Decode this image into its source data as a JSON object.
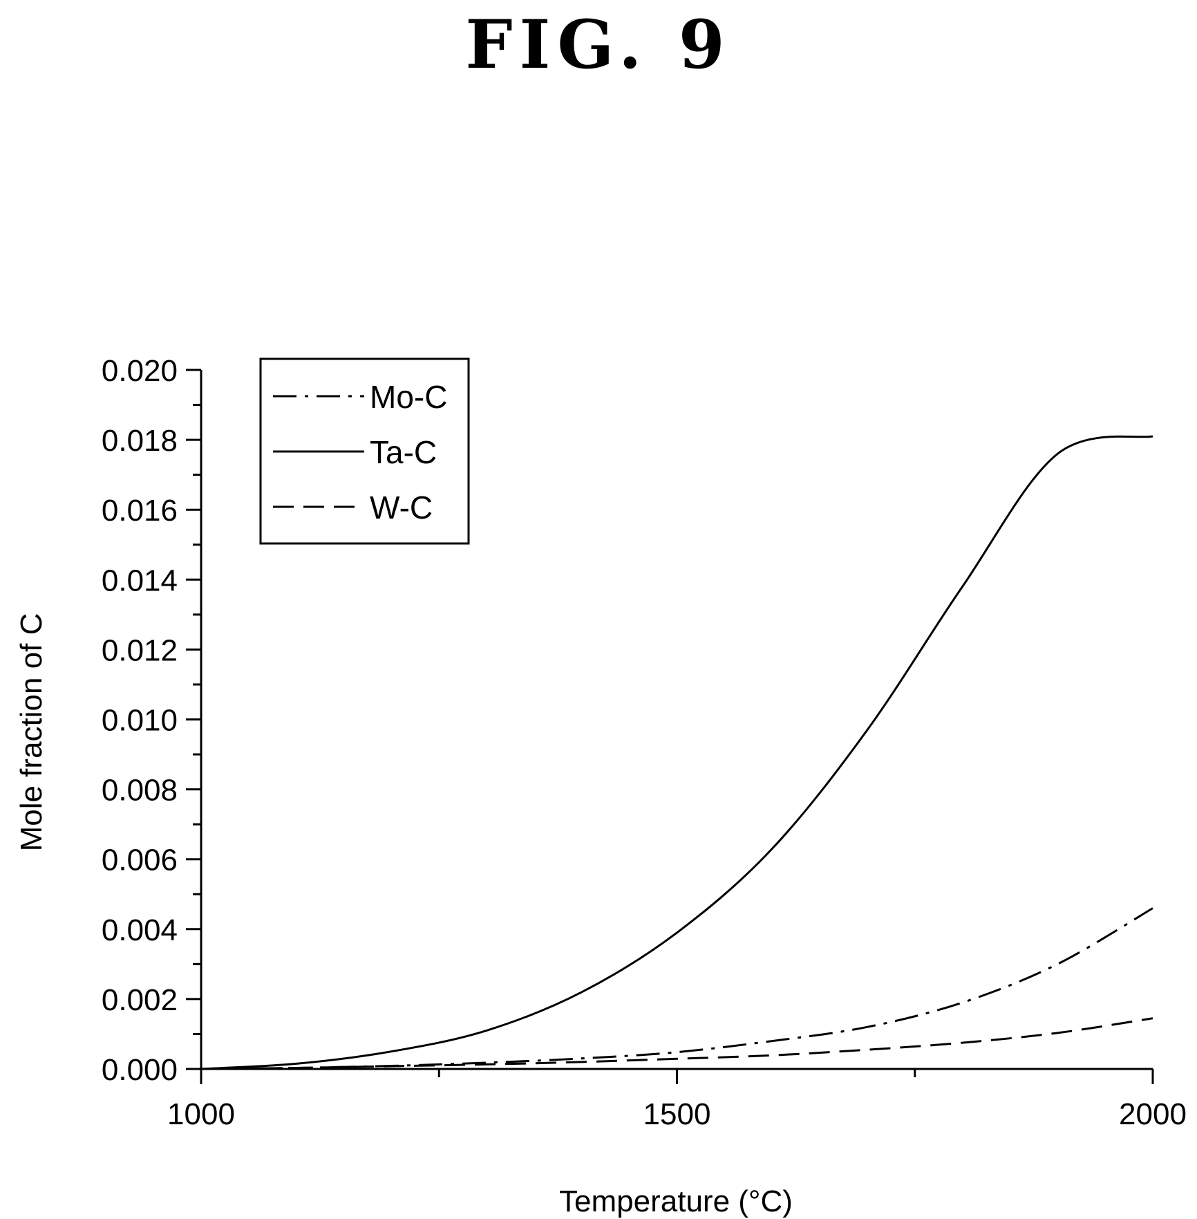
{
  "figure_title": "FIG. 9",
  "chart_data": {
    "type": "line",
    "xlabel": "Temperature (°C)",
    "ylabel": "Mole fraction of C",
    "xlim": [
      1000,
      2000
    ],
    "ylim": [
      0.0,
      0.02
    ],
    "xticks": [
      "1000",
      "1500",
      "2000"
    ],
    "yticks": [
      "0.000",
      "0.002",
      "0.004",
      "0.006",
      "0.008",
      "0.010",
      "0.012",
      "0.014",
      "0.016",
      "0.018",
      "0.020"
    ],
    "grid": false,
    "legend_position": "top-left",
    "x": [
      1000,
      1100,
      1200,
      1300,
      1400,
      1500,
      1600,
      1700,
      1800,
      1900,
      2000
    ],
    "series": [
      {
        "name": "Mo-C",
        "style": "dash-dot",
        "color": "#000000",
        "values": [
          0.0,
          3e-05,
          9e-05,
          0.00018,
          0.0003,
          0.00048,
          0.0008,
          0.0012,
          0.0019,
          0.003,
          0.0046
        ]
      },
      {
        "name": "Ta-C",
        "style": "solid",
        "color": "#000000",
        "values": [
          0.0,
          0.00015,
          0.0005,
          0.0011,
          0.0022,
          0.0039,
          0.0063,
          0.0097,
          0.0138,
          0.0176,
          0.0181
        ]
      },
      {
        "name": "W-C",
        "style": "dashed",
        "color": "#000000",
        "values": [
          0.0,
          3e-05,
          8e-05,
          0.00013,
          0.0002,
          0.00029,
          0.00039,
          0.00055,
          0.00075,
          0.00103,
          0.00145
        ]
      }
    ]
  }
}
